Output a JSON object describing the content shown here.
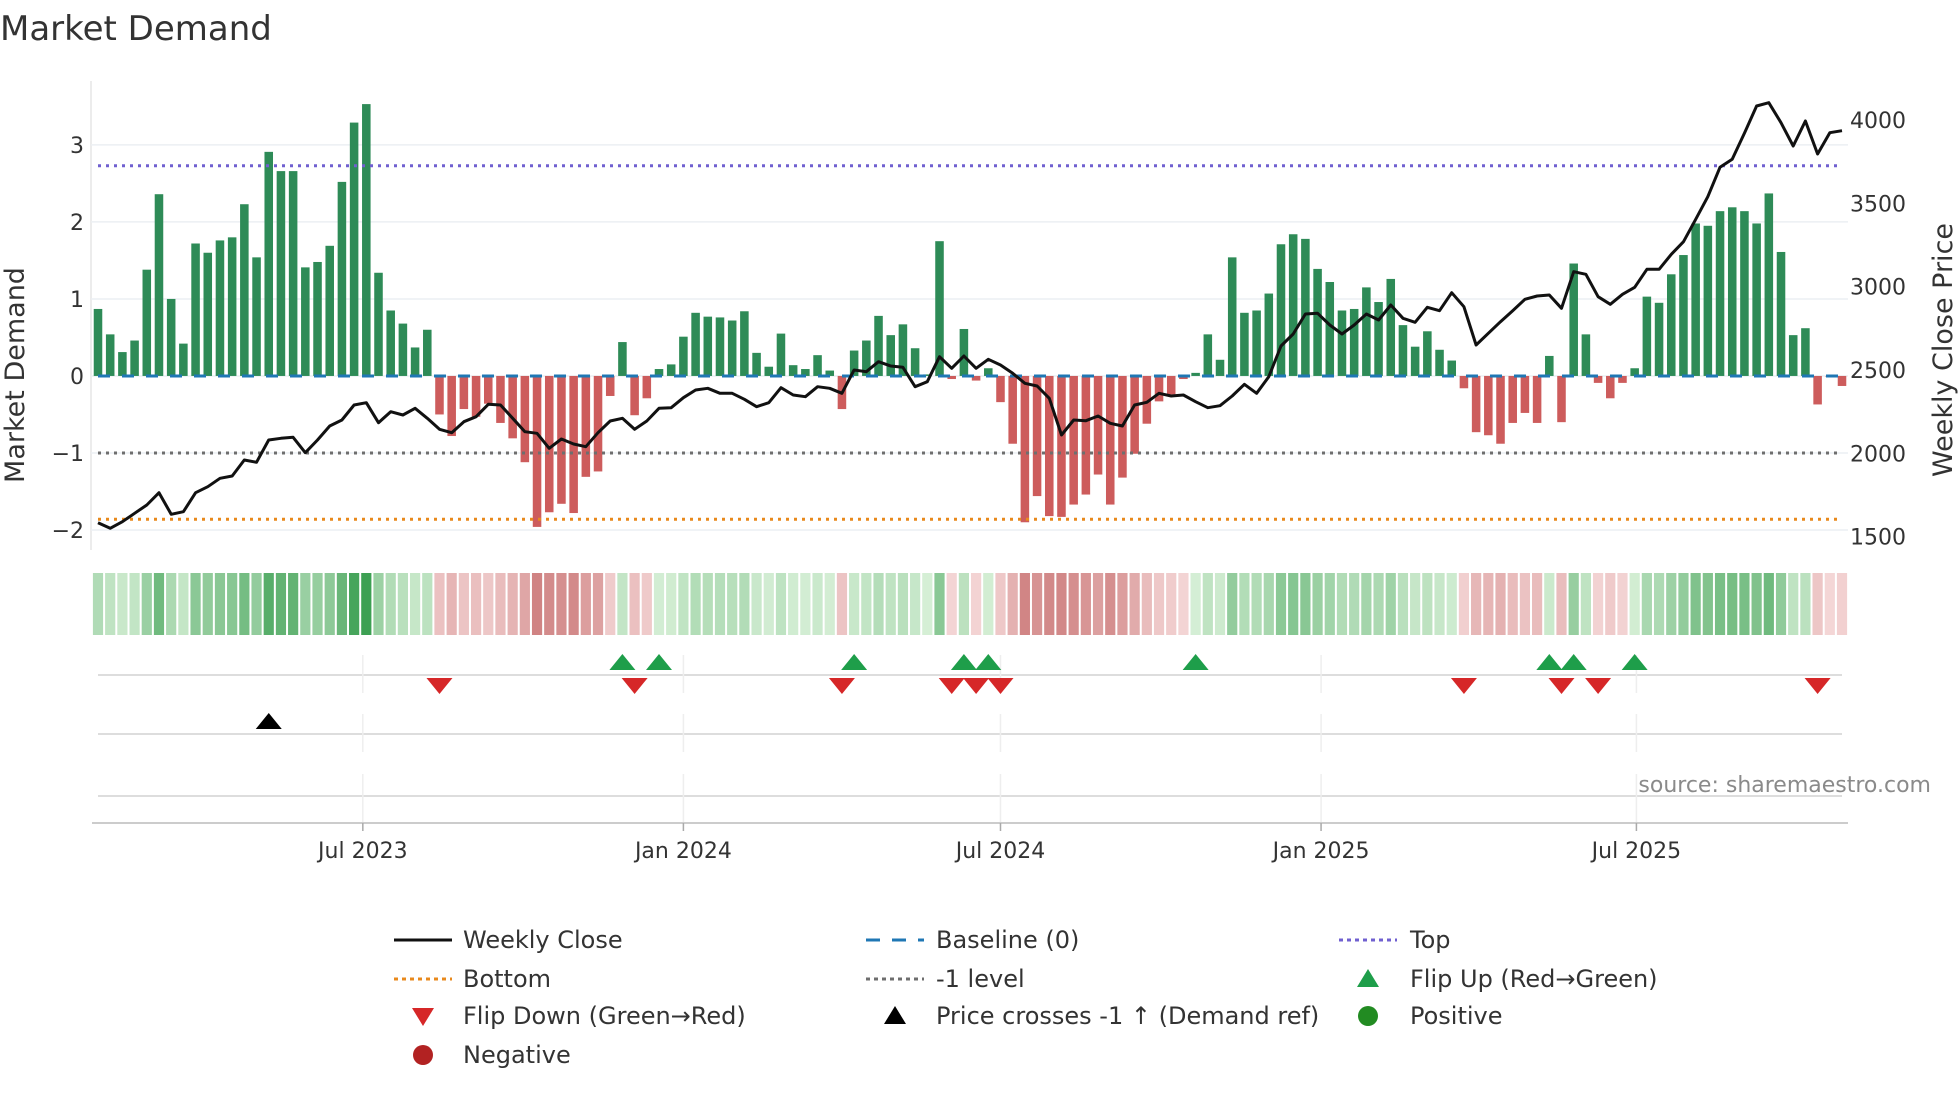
{
  "chart_data": {
    "type": "bar",
    "title": "Market Demand",
    "ylabel": "Market Demand",
    "y2label": "Weekly Close Price",
    "source": "source: sharemaestro.com",
    "frequency": "weekly",
    "start_date": "2023-01-30",
    "ylim": [
      -2.26,
      3.83
    ],
    "y2lim": [
      1420,
      4234
    ],
    "y_ticks": [
      {
        "v": 3,
        "label": "3"
      },
      {
        "v": 2,
        "label": "2"
      },
      {
        "v": 1,
        "label": "1"
      },
      {
        "v": 0,
        "label": "0"
      },
      {
        "v": -1,
        "label": "−1"
      },
      {
        "v": -2,
        "label": "−2"
      }
    ],
    "y2_ticks": [
      {
        "v": 4000,
        "label": "4000"
      },
      {
        "v": 3500,
        "label": "3500"
      },
      {
        "v": 3000,
        "label": "3000"
      },
      {
        "v": 2500,
        "label": "2500"
      },
      {
        "v": 2000,
        "label": "2000"
      },
      {
        "v": 1500,
        "label": "1500"
      }
    ],
    "x_ticks": [
      {
        "date": "2023-07-01",
        "label": "Jul 2023"
      },
      {
        "date": "2024-01-01",
        "label": "Jan 2024"
      },
      {
        "date": "2024-07-01",
        "label": "Jul 2024"
      },
      {
        "date": "2025-01-01",
        "label": "Jan 2025"
      },
      {
        "date": "2025-07-01",
        "label": "Jul 2025"
      }
    ],
    "levels": {
      "top": 2.73,
      "baseline": 0,
      "minus_one": -1,
      "bottom": -1.86
    },
    "demand": [
      0.87,
      0.54,
      0.31,
      0.46,
      1.38,
      2.36,
      1.0,
      0.42,
      1.72,
      1.6,
      1.76,
      1.8,
      2.23,
      1.54,
      2.91,
      2.66,
      2.66,
      1.41,
      1.48,
      1.69,
      2.52,
      3.29,
      3.53,
      1.34,
      0.85,
      0.68,
      0.37,
      0.6,
      -0.5,
      -0.78,
      -0.43,
      -0.53,
      -0.36,
      -0.61,
      -0.81,
      -1.12,
      -1.96,
      -1.77,
      -1.66,
      -1.78,
      -1.31,
      -1.24,
      -0.26,
      0.44,
      -0.51,
      -0.29,
      0.09,
      0.15,
      0.51,
      0.82,
      0.77,
      0.76,
      0.72,
      0.84,
      0.3,
      0.12,
      0.55,
      0.14,
      0.09,
      0.27,
      0.07,
      -0.43,
      0.33,
      0.46,
      0.78,
      0.53,
      0.67,
      0.36,
      0.02,
      1.75,
      -0.04,
      0.61,
      -0.06,
      0.1,
      -0.34,
      -0.88,
      -1.9,
      -1.56,
      -1.82,
      -1.83,
      -1.67,
      -1.54,
      -1.28,
      -1.67,
      -1.32,
      -1.01,
      -0.62,
      -0.33,
      -0.24,
      -0.04,
      0.04,
      0.54,
      0.21,
      1.54,
      0.82,
      0.85,
      1.07,
      1.71,
      1.84,
      1.78,
      1.39,
      1.22,
      0.85,
      0.87,
      1.15,
      0.96,
      1.26,
      0.66,
      0.38,
      0.58,
      0.34,
      0.2,
      -0.16,
      -0.73,
      -0.77,
      -0.88,
      -0.61,
      -0.48,
      -0.61,
      0.26,
      -0.6,
      1.46,
      0.54,
      -0.09,
      -0.29,
      -0.09,
      0.1,
      1.03,
      0.95,
      1.32,
      1.57,
      1.98,
      1.95,
      2.14,
      2.19,
      2.14,
      1.98,
      2.37,
      1.61,
      0.53,
      0.62,
      -0.37,
      -0.01,
      -0.13
    ],
    "weekly_close": [
      1584,
      1550,
      1590,
      1640,
      1690,
      1764,
      1634,
      1650,
      1764,
      1800,
      1850,
      1864,
      1960,
      1946,
      2080,
      2090,
      2096,
      2004,
      2080,
      2164,
      2200,
      2290,
      2304,
      2184,
      2250,
      2230,
      2270,
      2210,
      2144,
      2124,
      2190,
      2220,
      2294,
      2290,
      2210,
      2130,
      2120,
      2030,
      2086,
      2056,
      2040,
      2124,
      2194,
      2210,
      2144,
      2194,
      2270,
      2274,
      2334,
      2380,
      2390,
      2360,
      2360,
      2324,
      2280,
      2304,
      2394,
      2350,
      2340,
      2400,
      2390,
      2360,
      2500,
      2490,
      2550,
      2524,
      2516,
      2400,
      2430,
      2580,
      2510,
      2584,
      2510,
      2564,
      2530,
      2480,
      2420,
      2404,
      2330,
      2110,
      2200,
      2196,
      2224,
      2180,
      2164,
      2290,
      2306,
      2360,
      2344,
      2350,
      2310,
      2274,
      2286,
      2344,
      2414,
      2360,
      2460,
      2644,
      2716,
      2836,
      2840,
      2770,
      2716,
      2770,
      2836,
      2800,
      2890,
      2810,
      2786,
      2876,
      2856,
      2964,
      2880,
      2650,
      2720,
      2790,
      2856,
      2924,
      2944,
      2950,
      2870,
      3090,
      3074,
      2940,
      2894,
      2954,
      2996,
      3104,
      3104,
      3194,
      3270,
      3404,
      3540,
      3716,
      3764,
      3920,
      4084,
      4104,
      3984,
      3844,
      3994,
      3796,
      3924,
      3936
    ],
    "flip_up_weeks": [
      43,
      46,
      62,
      71,
      73,
      90,
      119,
      121,
      126
    ],
    "flip_down_weeks": [
      28,
      44,
      61,
      70,
      72,
      74,
      112,
      120,
      123,
      141
    ],
    "price_cross_up_weeks": [
      14
    ],
    "legend": [
      {
        "key": "close",
        "label": "Weekly Close"
      },
      {
        "key": "baseline",
        "label": "Baseline (0)"
      },
      {
        "key": "top",
        "label": "Top"
      },
      {
        "key": "bottom",
        "label": "Bottom"
      },
      {
        "key": "minus1",
        "label": "-1 level"
      },
      {
        "key": "flipup",
        "label": "Flip Up (Red→Green)"
      },
      {
        "key": "flipdown",
        "label": "Flip Down (Green→Red)"
      },
      {
        "key": "cross",
        "label": "Price crosses -1 ↑ (Demand ref)"
      },
      {
        "key": "positive",
        "label": "Positive"
      },
      {
        "key": "negative",
        "label": "Negative"
      }
    ],
    "colors": {
      "positive_bar": "#2e8b57",
      "negative_bar": "#cd5c5c",
      "close": "#111111",
      "baseline": "#1f77b4",
      "top": "#7060d0",
      "bottom": "#e8891c",
      "minus1": "#6e6e6e",
      "flip_up": "#1e9e4a",
      "flip_down": "#d62728",
      "cross": "#000000",
      "positive_dot": "#228b22",
      "negative_dot": "#b22222"
    }
  }
}
